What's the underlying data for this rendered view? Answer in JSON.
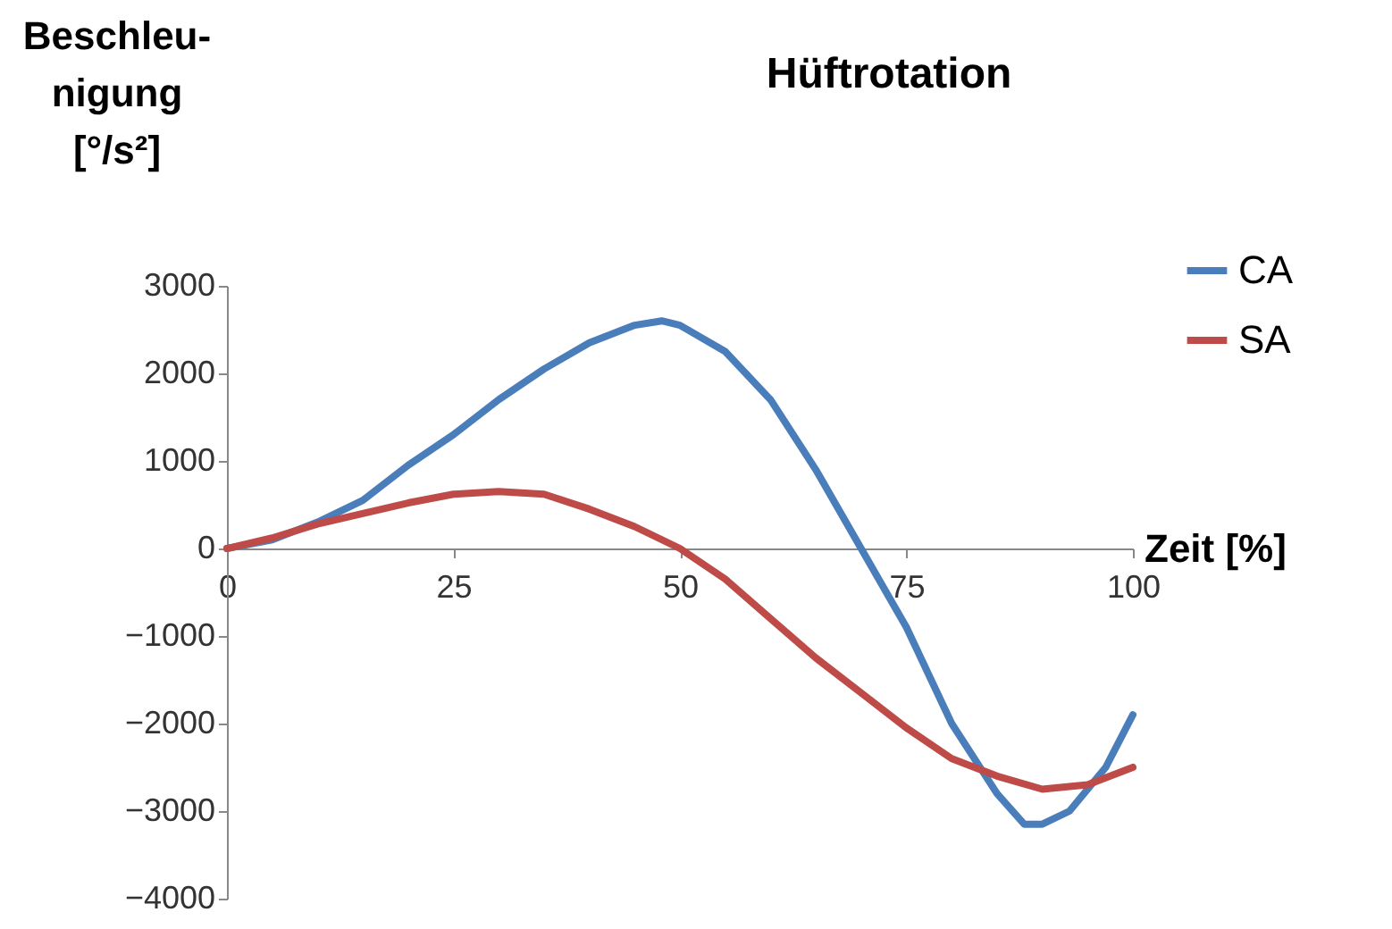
{
  "chart_data": {
    "type": "line",
    "title": "Hüftrotation",
    "xlabel": "Zeit [%]",
    "ylabel": "Beschleu-\nnigung\n[°/s²]",
    "x": [
      0,
      5,
      10,
      15,
      20,
      25,
      30,
      35,
      40,
      45,
      48,
      50,
      55,
      60,
      65,
      70,
      75,
      80,
      85,
      88,
      90,
      93,
      97,
      100
    ],
    "series": [
      {
        "name": "CA",
        "color": "#4a7ebb",
        "values": [
          0,
          100,
          300,
          550,
          950,
          1300,
          1700,
          2050,
          2350,
          2550,
          2600,
          2550,
          2250,
          1700,
          900,
          0,
          -900,
          -2000,
          -2800,
          -3150,
          -3150,
          -3000,
          -2500,
          -1900
        ]
      },
      {
        "name": "SA",
        "color": "#be4b48",
        "x": [
          0,
          5,
          10,
          15,
          20,
          25,
          30,
          35,
          40,
          45,
          50,
          55,
          60,
          65,
          70,
          75,
          80,
          85,
          90,
          95,
          100
        ],
        "values": [
          0,
          120,
          280,
          400,
          520,
          620,
          650,
          620,
          450,
          250,
          0,
          -350,
          -800,
          -1250,
          -1650,
          -2050,
          -2400,
          -2600,
          -2750,
          -2700,
          -2500
        ]
      }
    ],
    "xlim": [
      0,
      100
    ],
    "xticks": [
      0,
      25,
      50,
      75,
      100
    ],
    "ylim": [
      -4000,
      3000
    ],
    "yticks": [
      -4000,
      -3000,
      -2000,
      -1000,
      0,
      1000,
      2000,
      3000
    ],
    "grid": false,
    "legend": "top right",
    "marker": "none",
    "line_style": "solid"
  }
}
